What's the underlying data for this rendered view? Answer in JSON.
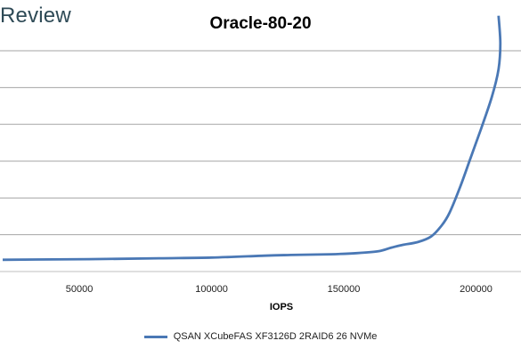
{
  "header": {
    "logo_text": "Review"
  },
  "chart_data": {
    "type": "line",
    "title": "Oracle-80-20",
    "xlabel": "IOPS",
    "ylabel": "",
    "xlim": [
      20000,
      217000
    ],
    "ylim": [
      0,
      6
    ],
    "x_ticks": [
      50000,
      100000,
      150000,
      200000
    ],
    "y_gridlines": [
      1,
      2,
      3,
      4,
      5,
      6
    ],
    "grid": true,
    "legend_position": "bottom",
    "colors": {
      "series": "#4a78b5",
      "grid": "#a6a6a6"
    },
    "series": [
      {
        "name": "QSAN XCubeFAS XF3126D 2RAID6 26 NVMe",
        "x": [
          21000,
          40000,
          60000,
          80000,
          100000,
          120000,
          130000,
          145000,
          155000,
          163000,
          168000,
          172000,
          178000,
          183000,
          187000,
          190000,
          194000,
          198000,
          202000,
          206000,
          208500,
          209200,
          208500
        ],
        "y": [
          0.32,
          0.33,
          0.34,
          0.36,
          0.38,
          0.43,
          0.45,
          0.47,
          0.5,
          0.55,
          0.65,
          0.72,
          0.8,
          0.95,
          1.25,
          1.6,
          2.3,
          3.1,
          3.9,
          4.75,
          5.5,
          6.2,
          6.95
        ]
      }
    ]
  }
}
